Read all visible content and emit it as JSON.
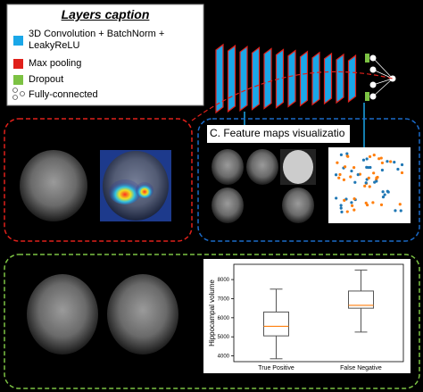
{
  "legend": {
    "title": "Layers caption",
    "items": [
      "3D Convolution + BatchNorm + LeakyReLU",
      "Max pooling",
      "Dropout",
      "Fully-connected"
    ]
  },
  "feature_maps": {
    "title": "C. Feature maps visualizatio"
  },
  "chart_data": {
    "type": "box",
    "ylabel": "Hippocampal volume",
    "categories": [
      "True Positive",
      "False Negative"
    ],
    "ylim": [
      3700,
      8800
    ],
    "yticks": [
      4000,
      5000,
      6000,
      7000,
      8000
    ],
    "box_color": "#555555",
    "median_color": "#ff7f0e",
    "boxes": [
      {
        "whislo": 3850,
        "q1": 5050,
        "med": 5550,
        "q3": 6300,
        "whishi": 7500
      },
      {
        "whislo": 5250,
        "q1": 6500,
        "med": 6650,
        "q3": 7400,
        "whishi": 8500
      }
    ]
  }
}
